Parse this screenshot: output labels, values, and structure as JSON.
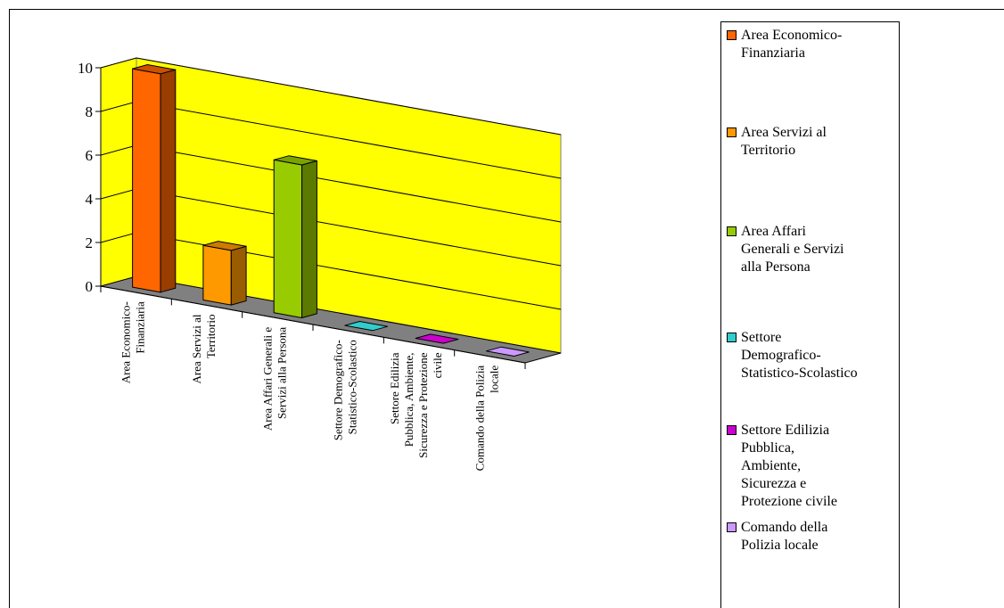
{
  "chart_data": {
    "type": "bar",
    "categories": [
      "Area Economico-Finanziaria",
      "Area Servizi al Territorio",
      "Area Affari Generali e Servizi alla Persona",
      "Settore Demografico-Statistico-Scolastico",
      "Settore Edilizia Pubblica, Ambiente, Sicurezza e Protezione civile",
      "Comando della Polizia locale"
    ],
    "category_labels": [
      "Area Economico-\nFinanziaria",
      "Area Servizi al\nTerritorio",
      "Area Affari Generali e\nServizi alla Persona",
      "Settore Demografico-\nStatistico-Scolastico",
      "Settore Edilizia\nPubblica, Ambiente,\nSicurezza e Protezione\ncivile",
      "Comando della Polizia\nlocale"
    ],
    "values": [
      10,
      2.5,
      7,
      0,
      0,
      0
    ],
    "yticks": [
      "0",
      "2",
      "4",
      "6",
      "8",
      "10"
    ],
    "ylim": [
      0,
      10
    ],
    "grid": true,
    "legend_position": "right",
    "colors": [
      "#ff6600",
      "#ff9900",
      "#99cc00",
      "#33cccc",
      "#cc00cc",
      "#cc99ff"
    ],
    "wall_color": "#ffff00",
    "floor_color": "#808080",
    "legend": [
      "Area Economico-\nFinanziaria",
      "Area Servizi al\nTerritorio",
      "Area Affari\nGenerali e Servizi\nalla Persona",
      "Settore\nDemografico-\nStatistico-Scolastico",
      "Settore Edilizia\nPubblica,\nAmbiente,\nSicurezza e\nProtezione civile",
      "Comando della\nPolizia locale"
    ],
    "title": "",
    "xlabel": "",
    "ylabel": ""
  }
}
